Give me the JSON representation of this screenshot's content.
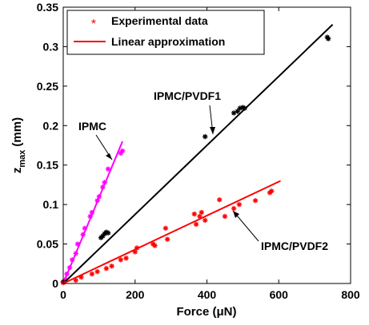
{
  "chart_data": {
    "type": "scatter",
    "xlabel": "Force (μN)",
    "ylabel": "z",
    "ylabel_subscript": "max",
    "ylabel_unit": "(mm)",
    "xlim": [
      0,
      800
    ],
    "ylim": [
      0,
      0.35
    ],
    "xticks": [
      0,
      200,
      400,
      600,
      800
    ],
    "yticks": [
      0,
      0.05,
      0.1,
      0.15,
      0.2,
      0.25,
      0.3,
      0.35
    ],
    "xtick_labels": [
      "0",
      "200",
      "400",
      "600",
      "800"
    ],
    "ytick_labels": [
      "0",
      "0.05",
      "0.1",
      "0.15",
      "0.2",
      "0.25",
      "0.3",
      "0.35"
    ],
    "grid": false,
    "legend_position": "top-left",
    "legend": [
      {
        "label": "Experimental data",
        "marker": "*"
      },
      {
        "label": "Linear approximation",
        "marker": "line"
      }
    ],
    "series": [
      {
        "name": "IPMC",
        "color": "#ff00ff",
        "points": [
          [
            0,
            0.002
          ],
          [
            5,
            0.005
          ],
          [
            10,
            0.012
          ],
          [
            18,
            0.02
          ],
          [
            25,
            0.03
          ],
          [
            35,
            0.038
          ],
          [
            40,
            0.05
          ],
          [
            55,
            0.062
          ],
          [
            60,
            0.07
          ],
          [
            75,
            0.085
          ],
          [
            80,
            0.09
          ],
          [
            95,
            0.105
          ],
          [
            100,
            0.11
          ],
          [
            110,
            0.122
          ],
          [
            115,
            0.128
          ],
          [
            125,
            0.145
          ],
          [
            160,
            0.165
          ],
          [
            165,
            0.168
          ]
        ],
        "fit": [
          [
            0,
            0
          ],
          [
            165,
            0.18
          ]
        ]
      },
      {
        "name": "IPMC/PVDF1",
        "color": "#000000",
        "points": [
          [
            0,
            0.002
          ],
          [
            105,
            0.058
          ],
          [
            110,
            0.06
          ],
          [
            115,
            0.063
          ],
          [
            120,
            0.065
          ],
          [
            125,
            0.064
          ],
          [
            395,
            0.186
          ],
          [
            475,
            0.216
          ],
          [
            485,
            0.218
          ],
          [
            492,
            0.222
          ],
          [
            500,
            0.223
          ],
          [
            505,
            0.222
          ],
          [
            735,
            0.312
          ],
          [
            738,
            0.31
          ]
        ],
        "fit": [
          [
            0,
            0
          ],
          [
            750,
            0.328
          ]
        ]
      },
      {
        "name": "IPMC/PVDF2",
        "color": "#ff0000",
        "points": [
          [
            0,
            0.001
          ],
          [
            35,
            0.004
          ],
          [
            50,
            0.008
          ],
          [
            80,
            0.012
          ],
          [
            95,
            0.015
          ],
          [
            120,
            0.019
          ],
          [
            135,
            0.022
          ],
          [
            160,
            0.03
          ],
          [
            175,
            0.032
          ],
          [
            200,
            0.04
          ],
          [
            205,
            0.045
          ],
          [
            250,
            0.05
          ],
          [
            255,
            0.048
          ],
          [
            285,
            0.07
          ],
          [
            290,
            0.056
          ],
          [
            365,
            0.088
          ],
          [
            370,
            0.075
          ],
          [
            380,
            0.085
          ],
          [
            385,
            0.09
          ],
          [
            395,
            0.08
          ],
          [
            435,
            0.106
          ],
          [
            450,
            0.085
          ],
          [
            475,
            0.095
          ],
          [
            490,
            0.1
          ],
          [
            535,
            0.105
          ],
          [
            575,
            0.115
          ],
          [
            580,
            0.117
          ]
        ],
        "fit": [
          [
            0,
            0
          ],
          [
            605,
            0.13
          ]
        ]
      }
    ],
    "annotations": [
      {
        "text": "IPMC",
        "arrow_to": [
          125,
          0.137
        ]
      },
      {
        "text": "IPMC/PVDF1",
        "arrow_to": [
          415,
          0.182
        ]
      },
      {
        "text": "IPMC/PVDF2",
        "arrow_to": [
          490,
          0.107
        ]
      }
    ]
  }
}
